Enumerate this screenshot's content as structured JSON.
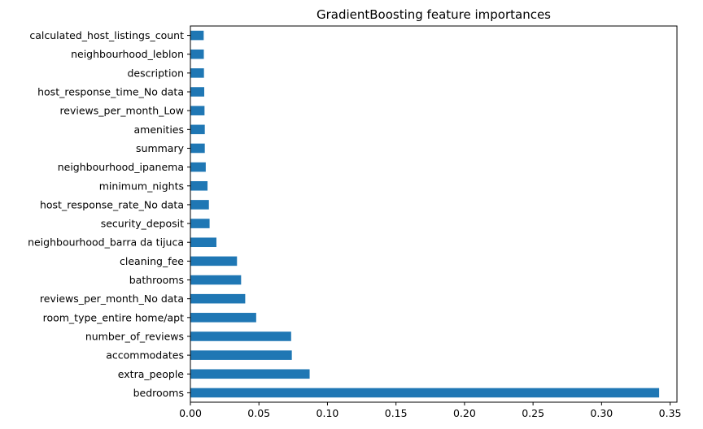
{
  "chart_data": {
    "type": "bar",
    "orientation": "horizontal",
    "title": "GradientBoosting feature importances",
    "xlabel": "",
    "ylabel": "",
    "xlim": [
      0,
      0.355
    ],
    "grid": false,
    "bar_color": "#1f77b4",
    "xticks": [
      0.0,
      0.05,
      0.1,
      0.15,
      0.2,
      0.25,
      0.3,
      0.35
    ],
    "xtick_labels": [
      "0.00",
      "0.05",
      "0.10",
      "0.15",
      "0.20",
      "0.25",
      "0.30",
      "0.35"
    ],
    "categories": [
      "bedrooms",
      "extra_people",
      "accommodates",
      "number_of_reviews",
      "room_type_entire home/apt",
      "reviews_per_month_No data",
      "bathrooms",
      "cleaning_fee",
      "neighbourhood_barra da tijuca",
      "security_deposit",
      "host_response_rate_No data",
      "minimum_nights",
      "neighbourhood_ipanema",
      "summary",
      "amenities",
      "reviews_per_month_Low",
      "host_response_time_No data",
      "description",
      "neighbourhood_leblon",
      "calculated_host_listings_count"
    ],
    "values": [
      0.342,
      0.087,
      0.074,
      0.0735,
      0.048,
      0.04,
      0.037,
      0.034,
      0.019,
      0.014,
      0.0135,
      0.0125,
      0.0112,
      0.0105,
      0.0105,
      0.0103,
      0.0101,
      0.0099,
      0.0098,
      0.0097
    ]
  }
}
